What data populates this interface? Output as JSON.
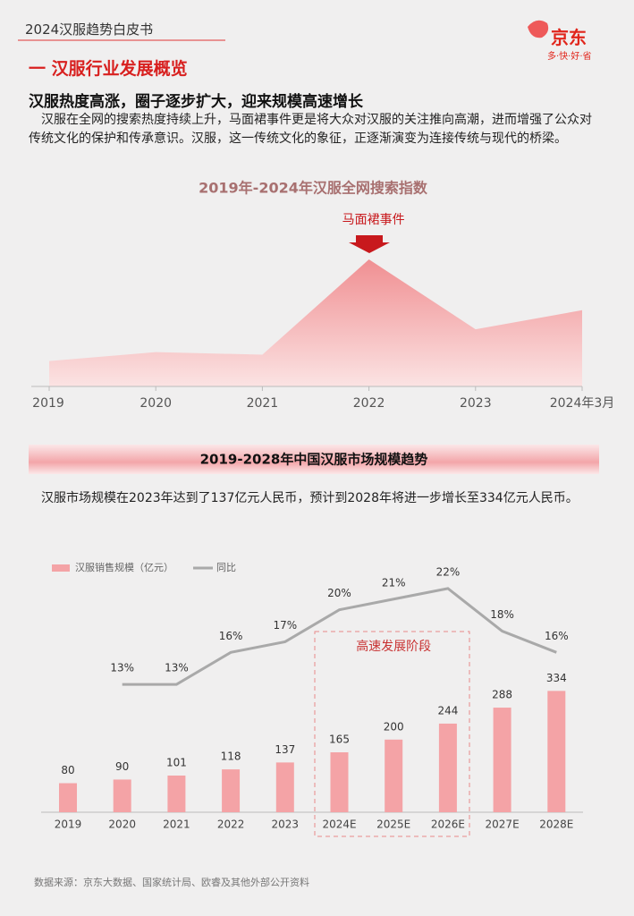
{
  "header": {
    "title": "2024汉服趋势白皮书",
    "logo": "京东",
    "slogan": "多·快·好·省"
  },
  "section": {
    "title": "一 汉服行业发展概览",
    "subtitle": "汉服热度高涨，圈子逐步扩大，迎来规模高速增长",
    "paragraph": "汉服在全网的搜索热度持续上升，马面裙事件更是将大众对汉服的关注推向高潮，进而增强了公众对传统文化的保护和传承意识。汉服，这一传统文化的象征，正逐渐演变为连接传统与现代的桥梁。",
    "paragraph2": "汉服市场规模在2023年达到了137亿元人民币，预计到2028年将进一步增长至334亿元人民币。"
  },
  "chart_data": [
    {
      "type": "area",
      "title": "2019年-2024年汉服全网搜索指数",
      "categories": [
        "2019",
        "2020",
        "2021",
        "2022",
        "2023",
        "2024年3月"
      ],
      "values": [
        20,
        27,
        25,
        100,
        45,
        60
      ],
      "ylim": [
        0,
        100
      ],
      "color": "#f08f92",
      "annotation": {
        "text": "马面裙事件",
        "category": 3
      }
    },
    {
      "type": "bar_line",
      "title": "2019-2028年中国汉服市场规模趋势",
      "categories": [
        "2019",
        "2020",
        "2021",
        "2022",
        "2023",
        "2024E",
        "2025E",
        "2026E",
        "2027E",
        "2028E"
      ],
      "series": [
        {
          "name": "汉服销售规模（亿元）",
          "type": "bar",
          "color": "#f4a3a6",
          "values": [
            80,
            90,
            101,
            118,
            137,
            165,
            200,
            244,
            288,
            334
          ]
        },
        {
          "name": "同比",
          "type": "line",
          "axis": "y2",
          "color": "#a9a9a9",
          "values": [
            null,
            13,
            13,
            16,
            17,
            20,
            21,
            22,
            18,
            16
          ],
          "value_labels": [
            null,
            "13%",
            "13%",
            "16%",
            "17%",
            "20%",
            "21%",
            "22%",
            "18%",
            "16%"
          ]
        }
      ],
      "ylim": [
        0,
        660
      ],
      "y2lim": [
        1,
        23.5
      ],
      "legend": "top-left",
      "annotation": {
        "text": "高速发展阶段",
        "from": 5,
        "to": 7
      }
    }
  ],
  "source": "数据来源：京东大数据、国家统计局、欧睿及其他外部公开资料"
}
